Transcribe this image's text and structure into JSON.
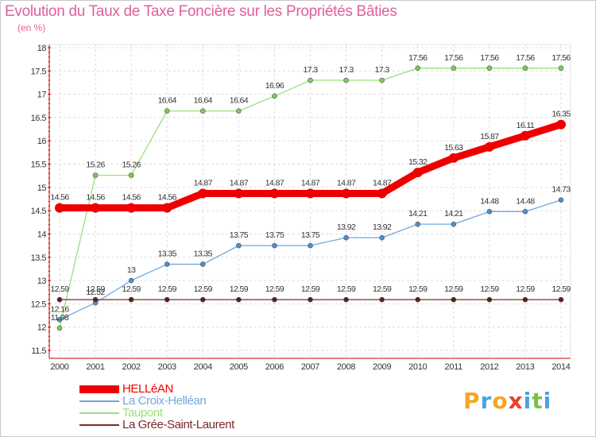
{
  "header": {
    "title": "Evolution du Taux de Taxe Foncière sur les Propriétés Bâties",
    "unit": "(en %)"
  },
  "logo": {
    "letters": [
      "P",
      "r",
      "o",
      "x",
      "i",
      "t",
      "i"
    ],
    "colors": [
      "#f5a623",
      "#4aa3df",
      "#f5a623",
      "#e8412c",
      "#4aa3df",
      "#7ac143",
      "#4aa3df"
    ]
  },
  "chart_data": {
    "type": "line",
    "title": "Evolution du Taux de Taxe Foncière sur les Propriétés Bâties",
    "ylabel": "(en %)",
    "xlabel": "",
    "ylim": [
      11.5,
      18
    ],
    "y_ticks": [
      "11.5",
      "12",
      "12.5",
      "13",
      "13.5",
      "14",
      "14.5",
      "15",
      "15.5",
      "16",
      "16.5",
      "17",
      "17.5",
      "18"
    ],
    "x": [
      "2000",
      "2001",
      "2002",
      "2003",
      "2004",
      "2005",
      "2006",
      "2007",
      "2008",
      "2009",
      "2010",
      "2011",
      "2012",
      "2013",
      "2014"
    ],
    "grid": true,
    "legend_position": "bottom-left",
    "series": [
      {
        "name": "Taupont",
        "color": "#99e07a",
        "marker": "#7ccc52",
        "values": [
          11.98,
          15.26,
          15.26,
          16.64,
          16.64,
          16.64,
          16.96,
          17.3,
          17.3,
          17.3,
          17.56,
          17.56,
          17.56,
          17.56,
          17.56
        ],
        "labels": [
          "11.98",
          "15.26",
          "15.26",
          "16.64",
          "16.64",
          "16.64",
          "16.96",
          "17.3",
          "17.3",
          "17.3",
          "17.56",
          "17.56",
          "17.56",
          "17.56",
          "17.56"
        ]
      },
      {
        "name": "La Croix-Helléan",
        "color": "#6fa8dc",
        "marker": "#4f8fc9",
        "values": [
          12.16,
          12.52,
          13,
          13.35,
          13.35,
          13.75,
          13.75,
          13.75,
          13.92,
          13.92,
          14.21,
          14.21,
          14.48,
          14.48,
          14.73
        ],
        "labels": [
          "12.16",
          "12.52",
          "13",
          "13.35",
          "13.35",
          "13.75",
          "13.75",
          "13.75",
          "13.92",
          "13.92",
          "14.21",
          "14.21",
          "14.48",
          "14.48",
          "14.73"
        ]
      },
      {
        "name": "La Grée-Saint-Laurent",
        "color": "#7a2a2a",
        "marker": "#5e1c1c",
        "values": [
          12.59,
          12.59,
          12.59,
          12.59,
          12.59,
          12.59,
          12.59,
          12.59,
          12.59,
          12.59,
          12.59,
          12.59,
          12.59,
          12.59,
          12.59
        ],
        "labels": [
          "12.59",
          "12.59",
          "12.59",
          "12.59",
          "12.59",
          "12.59",
          "12.59",
          "12.59",
          "12.59",
          "12.59",
          "12.59",
          "12.59",
          "12.59",
          "12.59",
          "12.59"
        ]
      },
      {
        "name": "HELLéAN",
        "color": "#ee0000",
        "marker": "#ee0000",
        "bold": true,
        "values": [
          14.56,
          14.56,
          14.56,
          14.56,
          14.87,
          14.87,
          14.87,
          14.87,
          14.87,
          14.87,
          15.32,
          15.63,
          15.87,
          16.11,
          16.35
        ],
        "labels": [
          "14.56",
          "14.56",
          "14.56",
          "14.56",
          "14.87",
          "14.87",
          "14.87",
          "14.87",
          "14.87",
          "14.87",
          "15.32",
          "15.63",
          "15.87",
          "16.11",
          "16.35"
        ]
      }
    ],
    "legend_order": [
      "HELLéAN",
      "La Croix-Helléan",
      "Taupont",
      "La Grée-Saint-Laurent"
    ]
  }
}
